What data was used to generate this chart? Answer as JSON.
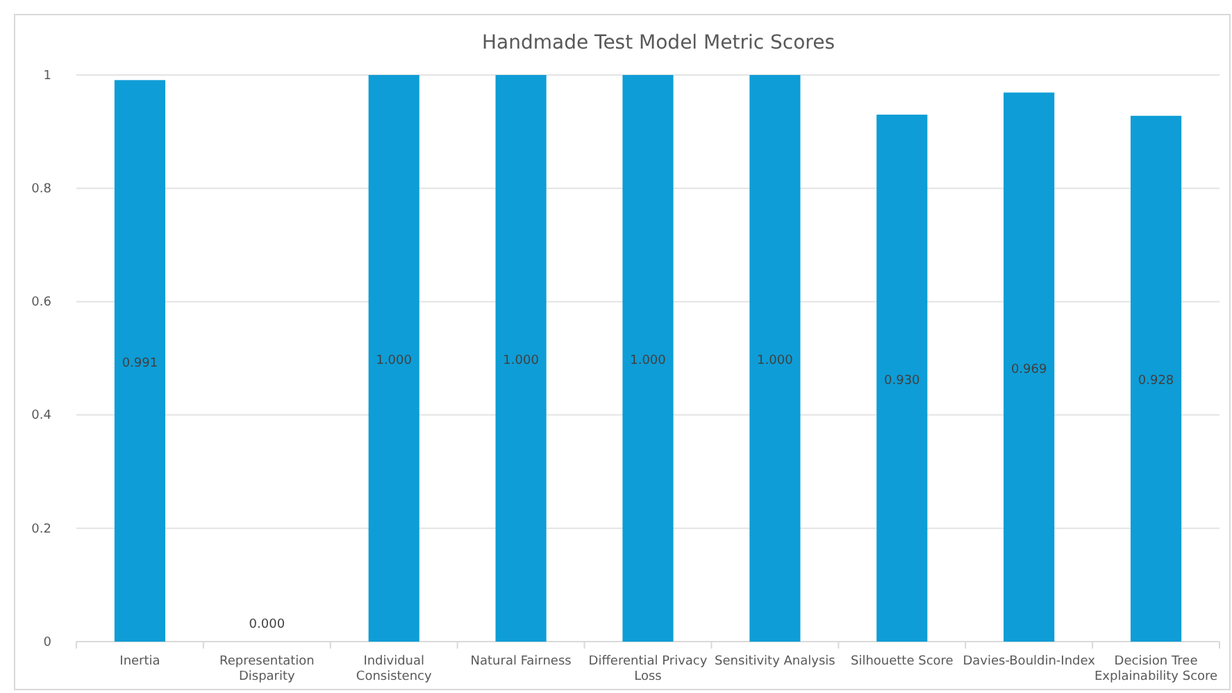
{
  "chart_data": {
    "type": "bar",
    "title": "Handmade Test Model Metric Scores",
    "categories": [
      "Inertia",
      "Representation Disparity",
      "Individual Consistency",
      "Natural Fairness",
      "Differential Privacy Loss",
      "Sensitivity Analysis",
      "Silhouette Score",
      "Davies-Bouldin-Index",
      "Decision Tree Explainability Score"
    ],
    "values": [
      0.991,
      0,
      1,
      1,
      1,
      1,
      0.93,
      0.969,
      0.928
    ],
    "value_labels": [
      "0.991",
      "0.000",
      "1.000",
      "1.000",
      "1.000",
      "1.000",
      "0.930",
      "0.969",
      "0.928"
    ],
    "color": "#0e9dd6",
    "ylim": [
      0,
      1
    ],
    "yticks": [
      0,
      0.2,
      0.4,
      0.6,
      0.8,
      1
    ],
    "grid": "y"
  }
}
